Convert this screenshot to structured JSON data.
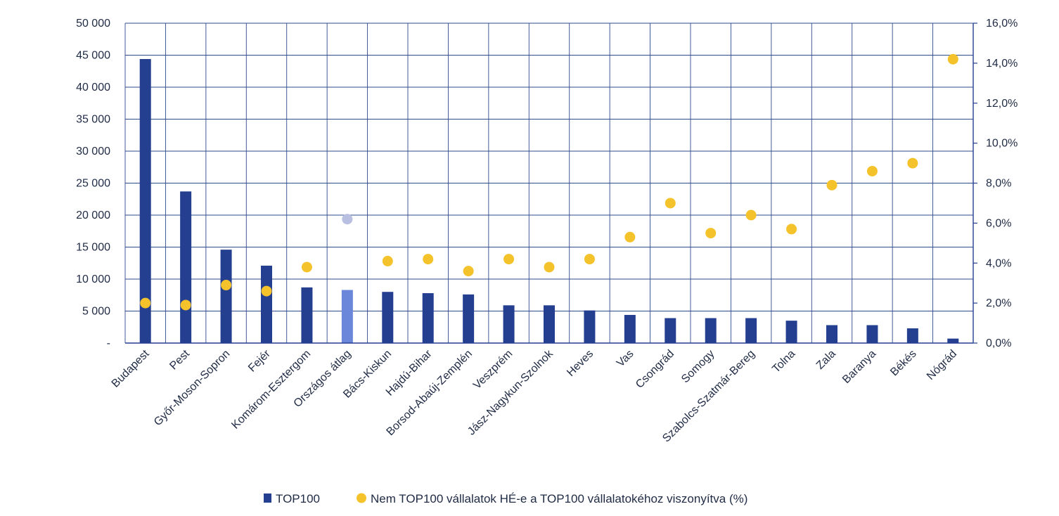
{
  "chart_data": {
    "type": "bar",
    "categories": [
      "Budapest",
      "Pest",
      "Győr-Moson-Sopron",
      "Fejér",
      "Komárom-Esztergom",
      "Országos átlag",
      "Bács-Kiskun",
      "Hajdú-Bihar",
      "Borsod-Abaúj-Zemplén",
      "Veszprém",
      "Jász-Nagykun-Szolnok",
      "Heves",
      "Vas",
      "Csongrád",
      "Somogy",
      "Szabolcs-Szatmár-Bereg",
      "Tolna",
      "Zala",
      "Baranya",
      "Békés",
      "Nógrád"
    ],
    "series": [
      {
        "name": "TOP100",
        "kind": "bar",
        "axis": "left",
        "color": "#243f8f",
        "highlight": {
          "category": "Országos átlag",
          "color": "#6a87d9"
        },
        "values": [
          44400,
          23700,
          14600,
          12100,
          8700,
          8300,
          8000,
          7800,
          7600,
          5900,
          5900,
          5100,
          4400,
          3900,
          3900,
          3900,
          3500,
          2800,
          2800,
          2300,
          700
        ]
      },
      {
        "name": "Nem TOP100 vállalatok HÉ-e a TOP100 vállalatokéhoz viszonyítva (%)",
        "kind": "scatter",
        "axis": "right",
        "color": "#f4c32c",
        "highlight": {
          "category": "Országos átlag",
          "color": "#b8bfe0"
        },
        "values": [
          2.0,
          1.9,
          2.9,
          2.6,
          3.8,
          6.2,
          4.1,
          4.2,
          3.6,
          4.2,
          3.8,
          4.2,
          5.3,
          7.0,
          5.5,
          6.4,
          5.7,
          7.9,
          8.6,
          9.0,
          14.2
        ]
      }
    ],
    "y_left": {
      "ylim": [
        0,
        50000
      ],
      "tick_labels": [
        "-",
        "5 000",
        "10 000",
        "15 000",
        "20 000",
        "25 000",
        "30 000",
        "35 000",
        "40 000",
        "45 000",
        "50 000"
      ]
    },
    "y_right": {
      "ylim": [
        0,
        16
      ],
      "tick_labels": [
        "0,0%",
        "2,0%",
        "4,0%",
        "6,0%",
        "8,0%",
        "10,0%",
        "12,0%",
        "14,0%",
        "16,0%"
      ]
    },
    "grid": true,
    "legend_position": "bottom-center",
    "legend": [
      {
        "label": "TOP100",
        "marker": "square"
      },
      {
        "label": "Nem TOP100 vállalatok HÉ-e a TOP100 vállalatokéhoz viszonyítva (%)",
        "marker": "circle"
      }
    ]
  }
}
